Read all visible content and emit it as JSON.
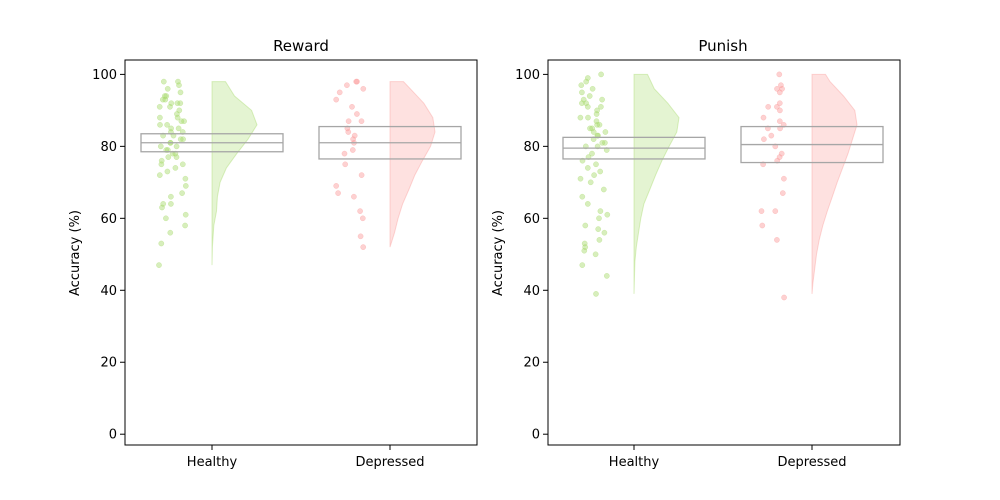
{
  "chart_data": [
    {
      "type": "raincloud",
      "title": "Reward",
      "xlabel": "",
      "ylabel": "Accuracy (%)",
      "ylim": [
        -3,
        104
      ],
      "yticks": [
        0,
        20,
        40,
        60,
        80,
        100
      ],
      "categories": [
        "Healthy",
        "Depressed"
      ],
      "groups": [
        {
          "category": "Healthy",
          "color": "#a6d96a",
          "box": {
            "q1": 78.5,
            "median": 81.0,
            "q3": 83.5
          },
          "violin": [
            [
              47,
              0.0
            ],
            [
              52,
              0.01
            ],
            [
              58,
              0.04
            ],
            [
              62,
              0.1
            ],
            [
              66,
              0.12
            ],
            [
              70,
              0.18
            ],
            [
              74,
              0.32
            ],
            [
              78,
              0.55
            ],
            [
              82,
              0.8
            ],
            [
              86,
              1.0
            ],
            [
              90,
              0.88
            ],
            [
              94,
              0.5
            ],
            [
              98,
              0.3
            ]
          ],
          "points": [
            98,
            98,
            97,
            96,
            95,
            94,
            94,
            93,
            93,
            92,
            92,
            92,
            91,
            91,
            90,
            89,
            88,
            88,
            87,
            87,
            86,
            86,
            85,
            85,
            84,
            84,
            83,
            83,
            82,
            82,
            81,
            81,
            80,
            80,
            79,
            79,
            78,
            78,
            77,
            77,
            76,
            75,
            75,
            74,
            73,
            72,
            71,
            69,
            67,
            66,
            64,
            64,
            63,
            61,
            60,
            58,
            56,
            53,
            47
          ]
        },
        {
          "category": "Depressed",
          "color": "#fb9a99",
          "box": {
            "q1": 76.5,
            "median": 81.0,
            "q3": 85.5
          },
          "violin": [
            [
              52,
              0.0
            ],
            [
              56,
              0.1
            ],
            [
              60,
              0.18
            ],
            [
              64,
              0.28
            ],
            [
              68,
              0.42
            ],
            [
              72,
              0.55
            ],
            [
              76,
              0.72
            ],
            [
              80,
              0.9
            ],
            [
              84,
              1.0
            ],
            [
              88,
              0.95
            ],
            [
              92,
              0.75
            ],
            [
              96,
              0.45
            ],
            [
              98,
              0.3
            ]
          ],
          "points": [
            98,
            98,
            97,
            96,
            95,
            93,
            91,
            89,
            87,
            87,
            85,
            84,
            83,
            82,
            81,
            79,
            78,
            75,
            72,
            69,
            67,
            66,
            62,
            60,
            55,
            52
          ]
        }
      ]
    },
    {
      "type": "raincloud",
      "title": "Punish",
      "xlabel": "",
      "ylabel": "Accuracy (%)",
      "ylim": [
        -3,
        104
      ],
      "yticks": [
        0,
        20,
        40,
        60,
        80,
        100
      ],
      "categories": [
        "Healthy",
        "Depressed"
      ],
      "groups": [
        {
          "category": "Healthy",
          "color": "#a6d96a",
          "box": {
            "q1": 76.5,
            "median": 79.5,
            "q3": 82.5
          },
          "violin": [
            [
              39,
              0.0
            ],
            [
              44,
              0.01
            ],
            [
              48,
              0.02
            ],
            [
              52,
              0.05
            ],
            [
              56,
              0.1
            ],
            [
              60,
              0.15
            ],
            [
              64,
              0.22
            ],
            [
              68,
              0.35
            ],
            [
              72,
              0.48
            ],
            [
              76,
              0.62
            ],
            [
              80,
              0.78
            ],
            [
              84,
              0.95
            ],
            [
              88,
              1.0
            ],
            [
              92,
              0.75
            ],
            [
              96,
              0.45
            ],
            [
              100,
              0.3
            ]
          ],
          "points": [
            100,
            99,
            98,
            97,
            96,
            95,
            94,
            93,
            93,
            92,
            92,
            91,
            91,
            90,
            89,
            88,
            88,
            87,
            86,
            86,
            85,
            85,
            84,
            84,
            83,
            83,
            82,
            81,
            81,
            80,
            80,
            79,
            78,
            77,
            76,
            75,
            74,
            73,
            72,
            71,
            70,
            68,
            66,
            64,
            62,
            61,
            60,
            58,
            57,
            56,
            54,
            53,
            52,
            51,
            50,
            47,
            44,
            39
          ]
        },
        {
          "category": "Depressed",
          "color": "#fb9a99",
          "box": {
            "q1": 75.5,
            "median": 80.5,
            "q3": 85.5
          },
          "violin": [
            [
              39,
              0.0
            ],
            [
              42,
              0.02
            ],
            [
              46,
              0.06
            ],
            [
              50,
              0.1
            ],
            [
              54,
              0.16
            ],
            [
              58,
              0.24
            ],
            [
              62,
              0.34
            ],
            [
              66,
              0.45
            ],
            [
              70,
              0.56
            ],
            [
              74,
              0.68
            ],
            [
              78,
              0.8
            ],
            [
              82,
              0.9
            ],
            [
              86,
              1.0
            ],
            [
              90,
              0.95
            ],
            [
              94,
              0.7
            ],
            [
              98,
              0.4
            ],
            [
              100,
              0.3
            ]
          ],
          "points": [
            100,
            97,
            96,
            96,
            95,
            92,
            91,
            91,
            90,
            88,
            87,
            86,
            85,
            85,
            83,
            82,
            80,
            78,
            77,
            76,
            75,
            71,
            67,
            62,
            62,
            58,
            54,
            38
          ]
        }
      ]
    }
  ]
}
